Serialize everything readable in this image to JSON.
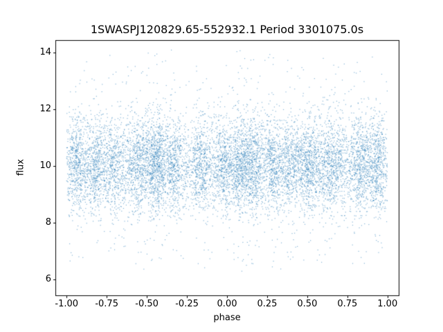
{
  "chart_data": {
    "type": "scatter",
    "title": "1SWASPJ120829.65-552932.1 Period 3301075.0s",
    "xlabel": "phase",
    "ylabel": "flux",
    "xlim": [
      -1.07,
      1.07
    ],
    "ylim": [
      5.45,
      14.45
    ],
    "xticks": [
      {
        "label": "-1.00",
        "value": -1.0
      },
      {
        "label": "-0.75",
        "value": -0.75
      },
      {
        "label": "-0.50",
        "value": -0.5
      },
      {
        "label": "-0.25",
        "value": -0.25
      },
      {
        "label": "0.00",
        "value": 0.0
      },
      {
        "label": "0.25",
        "value": 0.25
      },
      {
        "label": "0.50",
        "value": 0.5
      },
      {
        "label": "0.75",
        "value": 0.75
      },
      {
        "label": "1.00",
        "value": 1.0
      }
    ],
    "yticks": [
      {
        "label": "6",
        "value": 6
      },
      {
        "label": "8",
        "value": 8
      },
      {
        "label": "10",
        "value": 10
      },
      {
        "label": "12",
        "value": 12
      },
      {
        "label": "14",
        "value": 14
      }
    ],
    "grid": false,
    "legend": null,
    "marker_color": "#1f77b4",
    "marker_alpha": 0.55,
    "marker_size_px": 1.2,
    "points_model": {
      "description": "Dense folded light-curve scatter: ~11000 points, phase in [-1,1], flux core ~8.1-12.35 centered near 10.05, sparse outliers 6.3-14.1, clustered in vertical phase bands",
      "seed": 20240612,
      "n_points": 11000,
      "phase_range": [
        -1.0,
        1.0
      ],
      "band_fraction": 0.68,
      "bands": [
        [
          -0.93,
          0.025,
          5
        ],
        [
          -0.82,
          0.02,
          4
        ],
        [
          -0.7,
          0.03,
          5
        ],
        [
          -0.55,
          0.03,
          6
        ],
        [
          -0.44,
          0.025,
          7
        ],
        [
          -0.33,
          0.025,
          5
        ],
        [
          -0.16,
          0.03,
          5
        ],
        [
          -0.03,
          0.02,
          4
        ],
        [
          0.07,
          0.025,
          5
        ],
        [
          0.16,
          0.03,
          7
        ],
        [
          0.29,
          0.02,
          4
        ],
        [
          0.4,
          0.025,
          5
        ],
        [
          0.52,
          0.03,
          6
        ],
        [
          0.65,
          0.03,
          5
        ],
        [
          0.83,
          0.03,
          6
        ],
        [
          0.94,
          0.02,
          4
        ]
      ],
      "flux_core": {
        "mean": 10.05,
        "std": 0.82,
        "min": 8.05,
        "max": 12.35,
        "fraction": 0.88
      },
      "flux_wide": {
        "mean": 10.0,
        "std": 1.7,
        "min": 6.5,
        "max": 13.8,
        "fraction": 0.095
      },
      "flux_outlier": {
        "min": 6.3,
        "max": 14.1,
        "fraction": 0.025
      }
    }
  }
}
